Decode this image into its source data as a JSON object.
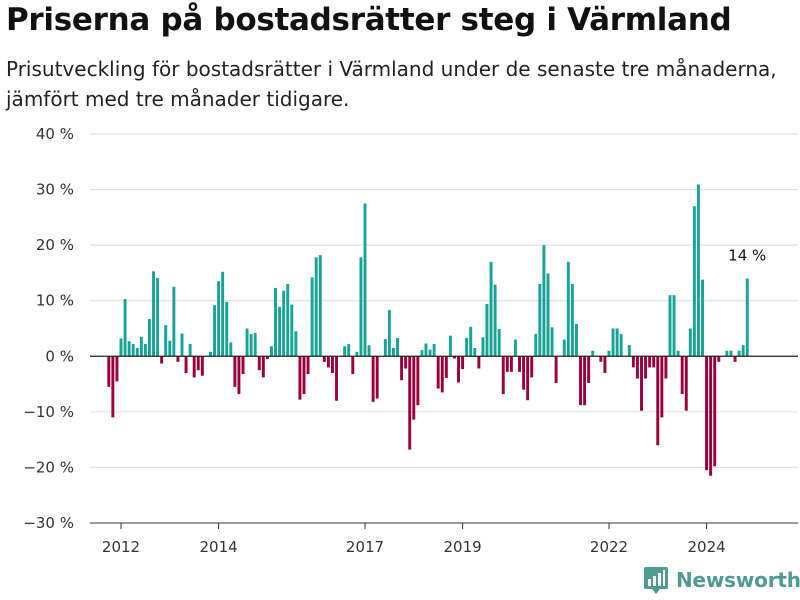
{
  "title": "Priserna på bostadsrätter steg i Värmland",
  "subtitle": "Prisutveckling för bostadsrätter i Värmland under de senaste tre månaderna, jämfört med tre månader tidigare.",
  "brand": "Newsworthy",
  "chart_data": {
    "type": "bar",
    "ylim": [
      -30,
      40
    ],
    "y_ticks": [
      {
        "value": 40,
        "label": "40 %"
      },
      {
        "value": 30,
        "label": "30 %"
      },
      {
        "value": 20,
        "label": "20 %"
      },
      {
        "value": 10,
        "label": "10 %"
      },
      {
        "value": 0,
        "label": "0 %"
      },
      {
        "value": -10,
        "label": "−10 %"
      },
      {
        "value": -20,
        "label": "−20 %"
      },
      {
        "value": -30,
        "label": "−30 %"
      }
    ],
    "x_ticks": [
      {
        "value": 2012,
        "label": "2012"
      },
      {
        "value": 2014,
        "label": "2014"
      },
      {
        "value": 2017,
        "label": "2017"
      },
      {
        "value": 2019,
        "label": "2019"
      },
      {
        "value": 2022,
        "label": "2022"
      },
      {
        "value": 2024,
        "label": "2024"
      }
    ],
    "x_start": 2011.75,
    "x_step": 0.08333,
    "positive_color": "#17a398",
    "negative_color": "#99003d",
    "annotation": {
      "label": "14 %",
      "value": 14
    },
    "values": [
      -5.5,
      -11,
      -4.5,
      3.2,
      10.3,
      2.7,
      2.2,
      1.5,
      3.5,
      2.2,
      6.7,
      15.3,
      14.1,
      -1.3,
      5.6,
      2.8,
      12.5,
      -1.0,
      4.1,
      -3.0,
      2.2,
      -3.8,
      -2.5,
      -3.5,
      0,
      0.8,
      9.2,
      13.5,
      15.2,
      9.8,
      2.5,
      -5.5,
      -6.8,
      -3.2,
      5.0,
      4.0,
      4.2,
      -2.5,
      -3.8,
      -0.5,
      1.8,
      12.3,
      8.9,
      11.8,
      13.0,
      9.3,
      4.5,
      -7.8,
      -6.8,
      -3.2,
      14.2,
      17.8,
      18.2,
      -1.0,
      -2.0,
      -3.0,
      -8.0,
      0,
      1.8,
      2.2,
      -3.2,
      0.8,
      17.8,
      27.5,
      2.0,
      -8.2,
      -7.6,
      0,
      3.1,
      8.3,
      1.5,
      3.3,
      -4.3,
      -2.2,
      -16.8,
      -11.4,
      -8.8,
      1.1,
      2.3,
      1.2,
      2.2,
      -5.8,
      -6.5,
      -3.9,
      3.7,
      -0.4,
      -4.7,
      -2.3,
      3.3,
      5.3,
      1.5,
      -2.2,
      3.4,
      9.4,
      17.0,
      12.9,
      4.9,
      -6.8,
      -2.8,
      -2.8,
      3.0,
      -2.8,
      -6.0,
      -7.9,
      -3.8,
      4.0,
      13.0,
      20.0,
      14.9,
      5.2,
      -4.8,
      0,
      3.0,
      17.0,
      13.0,
      5.8,
      -8.8,
      -8.8,
      -4.8,
      1.0,
      0,
      -1.0,
      -3.0,
      1.0,
      5.0,
      5.0,
      4.0,
      0,
      2.0,
      -2.0,
      -4.0,
      -9.8,
      -4.0,
      -2.0,
      -2.0,
      -16.0,
      -11.0,
      -4.0,
      11.0,
      11.0,
      1.0,
      -6.8,
      -9.8,
      5.0,
      27.0,
      30.9,
      13.8,
      -20.5,
      -21.5,
      -19.8,
      -1.0,
      0,
      1.0,
      1.0,
      -1.0,
      1.0,
      2.0,
      14.0
    ]
  }
}
